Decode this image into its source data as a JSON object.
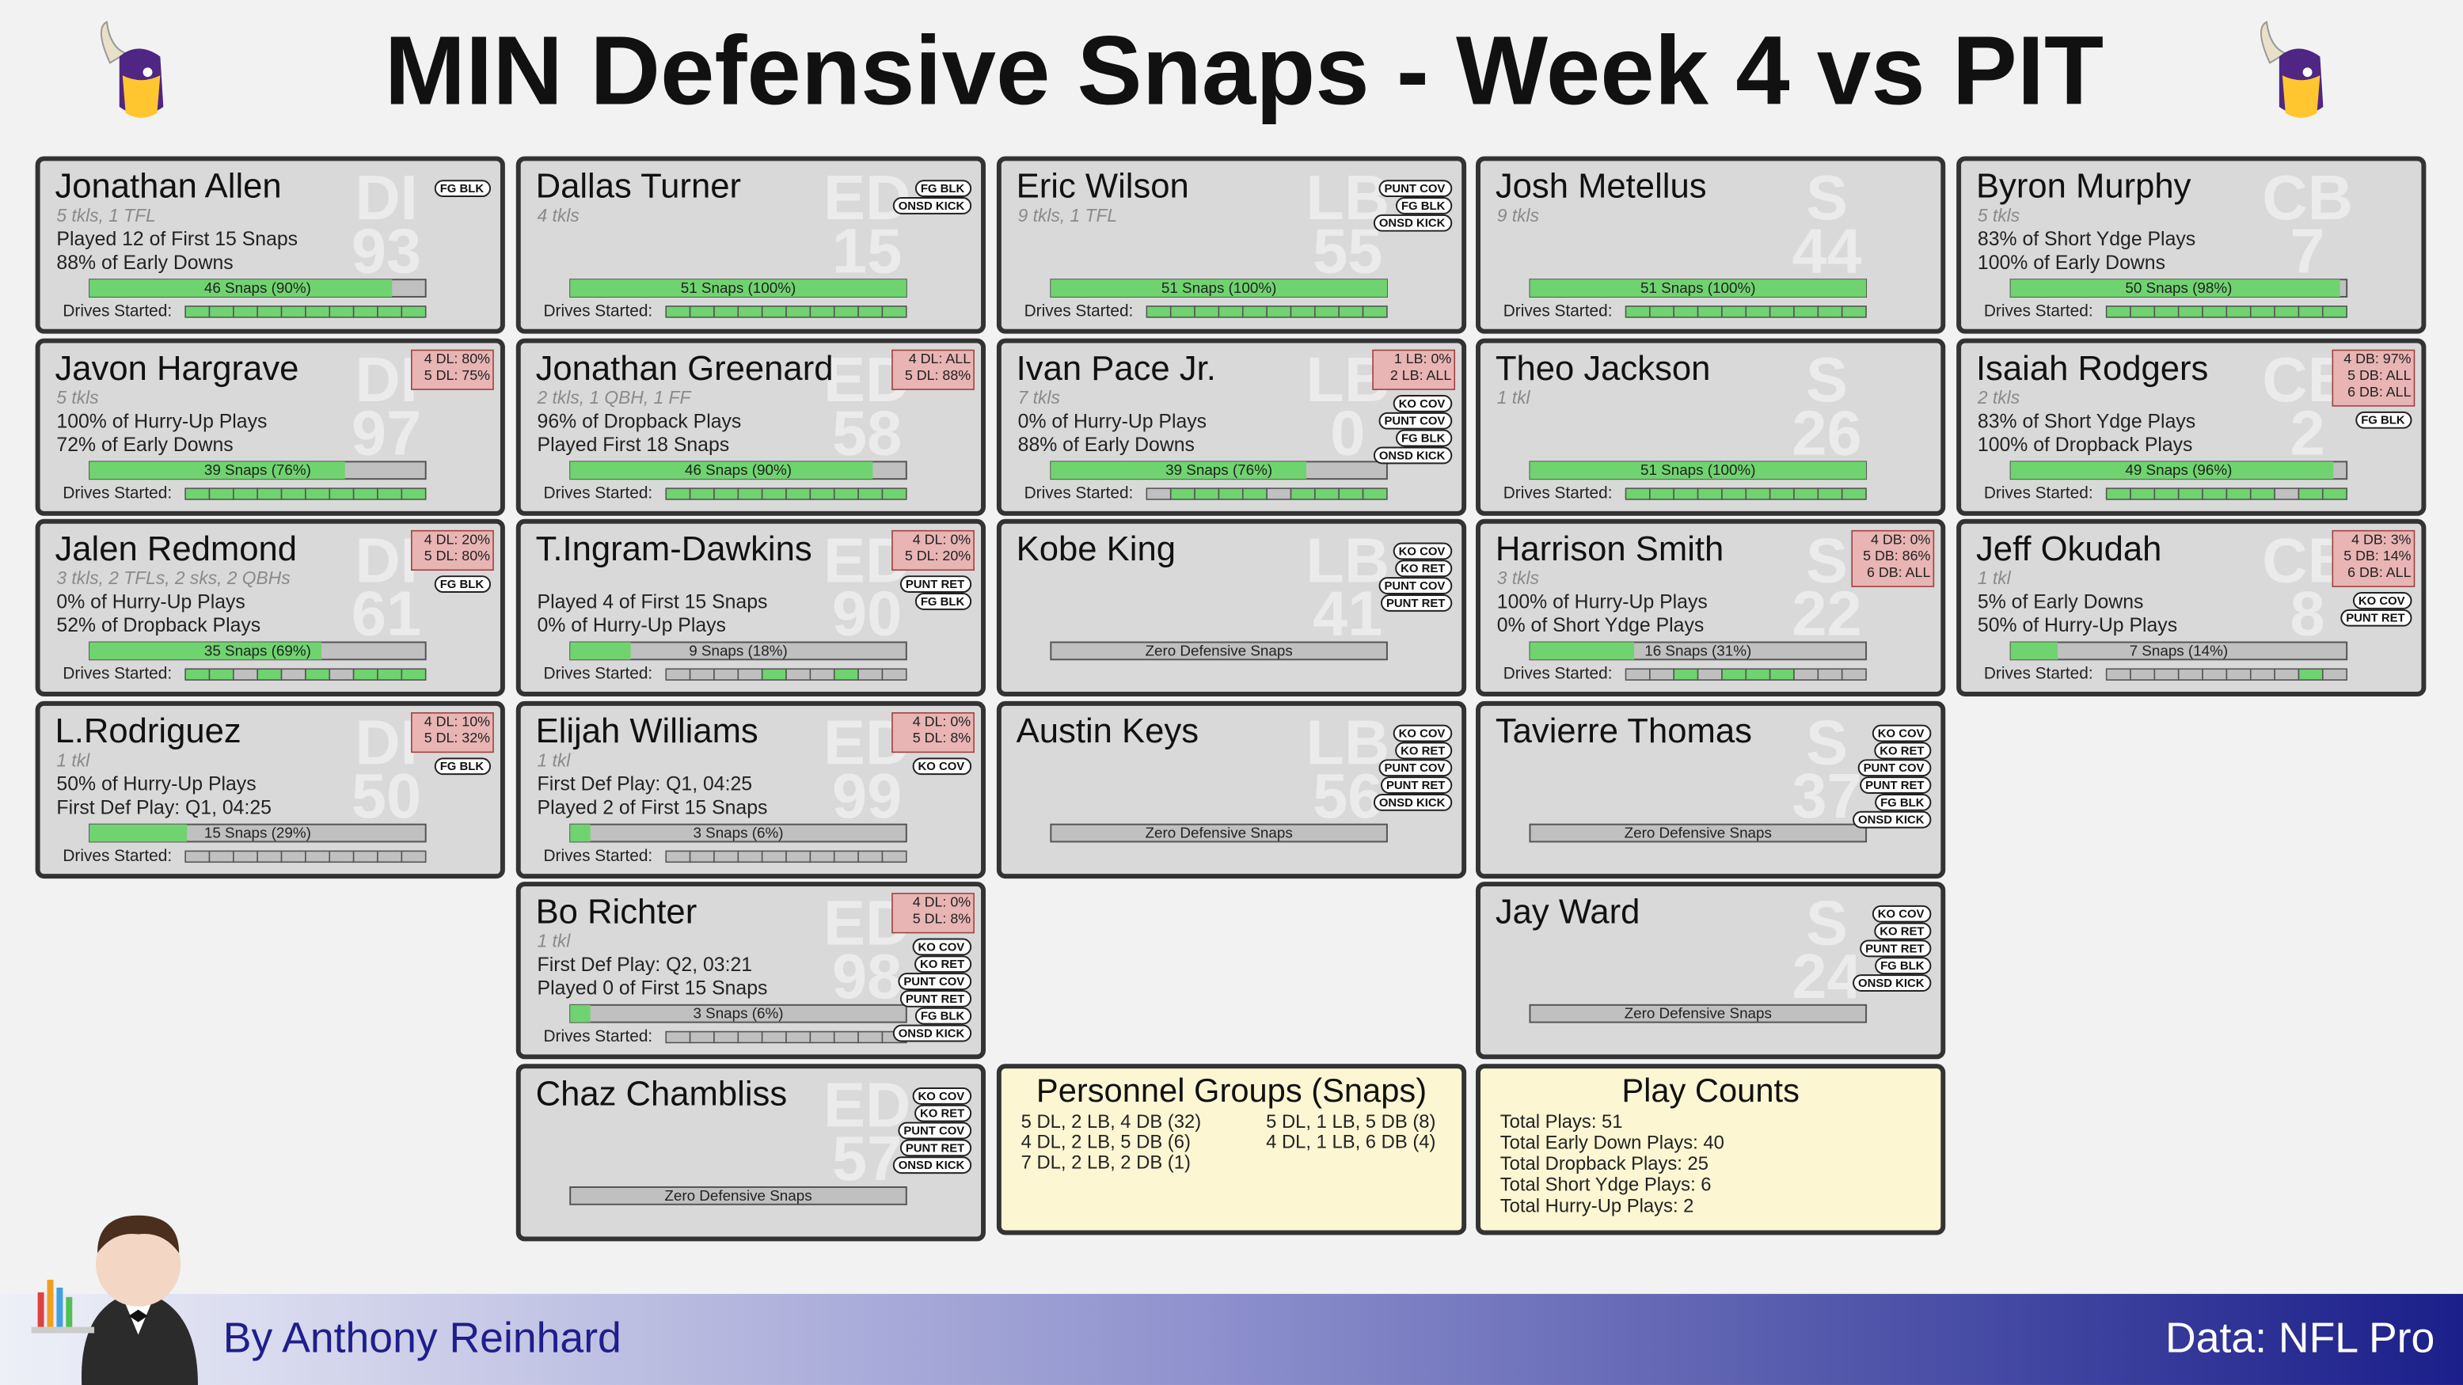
{
  "title": "MIN Defensive Snaps - Week 4 vs PIT",
  "drives_label": "Drives Started:",
  "columns": [
    {
      "cards": [
        {
          "name": "Jonathan Allen",
          "pos": "DI",
          "number": "93",
          "sub": "5 tkls, 1 TFL",
          "lines": [
            "Played 12 of First 15 Snaps",
            "88% of Early Downs"
          ],
          "snap_label": "46 Snaps (90%)",
          "snap_pct": 90,
          "tags": [
            "FG BLK"
          ],
          "drives": [
            1,
            1,
            1,
            1,
            1,
            1,
            1,
            1,
            1,
            1
          ]
        },
        {
          "name": "Javon Hargrave",
          "pos": "DI",
          "number": "97",
          "sub": "5 tkls",
          "lines": [
            "100% of Hurry-Up Plays",
            "72% of Early Downs"
          ],
          "snap_label": "39 Snaps (76%)",
          "snap_pct": 76,
          "split": [
            "4 DL: 80%",
            "5 DL: 75%"
          ],
          "drives": [
            1,
            1,
            1,
            1,
            1,
            1,
            1,
            1,
            1,
            1
          ]
        },
        {
          "name": "Jalen Redmond",
          "pos": "DI",
          "number": "61",
          "sub": "3 tkls, 2 TFLs, 2 sks, 2 QBHs",
          "lines": [
            "0% of Hurry-Up Plays",
            "52% of Dropback Plays"
          ],
          "snap_label": "35 Snaps (69%)",
          "snap_pct": 69,
          "split": [
            "4 DL: 20%",
            "5 DL: 80%"
          ],
          "tags": [
            "FG BLK"
          ],
          "drives": [
            1,
            1,
            0,
            1,
            0,
            1,
            0,
            1,
            1,
            1
          ]
        },
        {
          "name": "L.Rodriguez",
          "pos": "DI",
          "number": "50",
          "sub": "1 tkl",
          "lines": [
            "50% of Hurry-Up Plays",
            "First Def Play: Q1, 04:25"
          ],
          "snap_label": "15 Snaps (29%)",
          "snap_pct": 29,
          "split": [
            "4 DL: 10%",
            "5 DL: 32%"
          ],
          "tags": [
            "FG BLK"
          ],
          "drives": [
            0,
            0,
            0,
            0,
            0,
            0,
            0,
            0,
            0,
            0
          ]
        }
      ]
    },
    {
      "cards": [
        {
          "name": "Dallas Turner",
          "pos": "ED",
          "number": "15",
          "sub": "4 tkls",
          "snap_label": "51 Snaps (100%)",
          "snap_pct": 100,
          "tags": [
            "FG BLK",
            "ONSD KICK"
          ],
          "drives": [
            1,
            1,
            1,
            1,
            1,
            1,
            1,
            1,
            1,
            1
          ]
        },
        {
          "name": "Jonathan Greenard",
          "pos": "ED",
          "number": "58",
          "sub": "2 tkls, 1 QBH, 1 FF",
          "lines": [
            "96% of Dropback Plays",
            "Played First 18 Snaps"
          ],
          "snap_label": "46 Snaps (90%)",
          "snap_pct": 90,
          "split": [
            "4 DL: ALL",
            "5 DL: 88%"
          ],
          "drives": [
            1,
            1,
            1,
            1,
            1,
            1,
            1,
            1,
            1,
            1
          ]
        },
        {
          "name": "T.Ingram-Dawkins",
          "pos": "ED",
          "number": "90",
          "lines": [
            "Played 4 of First 15 Snaps",
            "0% of Hurry-Up Plays"
          ],
          "snap_label": "9 Snaps (18%)",
          "snap_pct": 18,
          "split": [
            "4 DL: 0%",
            "5 DL: 20%"
          ],
          "tags": [
            "PUNT RET",
            "FG BLK"
          ],
          "drives": [
            0,
            0,
            0,
            0,
            1,
            0,
            0,
            1,
            0,
            0
          ]
        },
        {
          "name": "Elijah Williams",
          "pos": "ED",
          "number": "99",
          "sub": "1 tkl",
          "lines": [
            "First Def Play: Q1, 04:25",
            "Played 2 of First 15 Snaps"
          ],
          "snap_label": "3 Snaps (6%)",
          "snap_pct": 6,
          "split": [
            "4 DL: 0%",
            "5 DL: 8%"
          ],
          "tags": [
            "KO COV"
          ],
          "drives": [
            0,
            0,
            0,
            0,
            0,
            0,
            0,
            0,
            0,
            0
          ]
        },
        {
          "name": "Bo Richter",
          "pos": "ED",
          "number": "98",
          "sub": "1 tkl",
          "lines": [
            "First Def Play: Q2, 03:21",
            "Played 0 of First 15 Snaps"
          ],
          "snap_label": "3 Snaps (6%)",
          "snap_pct": 6,
          "split": [
            "4 DL: 0%",
            "5 DL: 8%"
          ],
          "tags": [
            "KO COV",
            "KO RET",
            "PUNT COV",
            "PUNT RET",
            "FG BLK",
            "ONSD KICK"
          ],
          "drives": [
            0,
            0,
            0,
            0,
            0,
            0,
            0,
            0,
            0,
            0
          ]
        },
        {
          "name": "Chaz Chambliss",
          "pos": "ED",
          "number": "57",
          "snap_label": "Zero Defensive Snaps",
          "snap_pct": 0,
          "tags": [
            "KO COV",
            "KO RET",
            "PUNT COV",
            "PUNT RET",
            "ONSD KICK"
          ]
        }
      ]
    },
    {
      "cards": [
        {
          "name": "Eric Wilson",
          "pos": "LB",
          "number": "55",
          "sub": "9 tkls, 1 TFL",
          "snap_label": "51 Snaps (100%)",
          "snap_pct": 100,
          "tags": [
            "PUNT COV",
            "FG BLK",
            "ONSD KICK"
          ],
          "drives": [
            1,
            1,
            1,
            1,
            1,
            1,
            1,
            1,
            1,
            1
          ]
        },
        {
          "name": "Ivan Pace Jr.",
          "pos": "LB",
          "number": "0",
          "sub": "7 tkls",
          "lines": [
            "0% of Hurry-Up Plays",
            "88% of Early Downs"
          ],
          "snap_label": "39 Snaps (76%)",
          "snap_pct": 76,
          "split": [
            "1 LB: 0%",
            "2 LB: ALL"
          ],
          "tags": [
            "KO COV",
            "PUNT COV",
            "FG BLK",
            "ONSD KICK"
          ],
          "drives": [
            0,
            1,
            1,
            1,
            1,
            0,
            1,
            1,
            1,
            1
          ]
        },
        {
          "name": "Kobe King",
          "pos": "LB",
          "number": "41",
          "snap_label": "Zero Defensive Snaps",
          "snap_pct": 0,
          "tags": [
            "KO COV",
            "KO RET",
            "PUNT COV",
            "PUNT RET"
          ]
        },
        {
          "name": "Austin Keys",
          "pos": "LB",
          "number": "56",
          "snap_label": "Zero Defensive Snaps",
          "snap_pct": 0,
          "tags": [
            "KO COV",
            "KO RET",
            "PUNT COV",
            "PUNT RET",
            "ONSD KICK"
          ]
        }
      ]
    },
    {
      "cards": [
        {
          "name": "Josh Metellus",
          "pos": "S",
          "number": "44",
          "sub": "9 tkls",
          "snap_label": "51 Snaps (100%)",
          "snap_pct": 100,
          "drives": [
            1,
            1,
            1,
            1,
            1,
            1,
            1,
            1,
            1,
            1
          ]
        },
        {
          "name": "Theo Jackson",
          "pos": "S",
          "number": "26",
          "sub": "1 tkl",
          "snap_label": "51 Snaps (100%)",
          "snap_pct": 100,
          "drives": [
            1,
            1,
            1,
            1,
            1,
            1,
            1,
            1,
            1,
            1
          ]
        },
        {
          "name": "Harrison Smith",
          "pos": "S",
          "number": "22",
          "sub": "3 tkls",
          "lines": [
            "100% of Hurry-Up Plays",
            "0% of Short Ydge Plays"
          ],
          "snap_label": "16 Snaps (31%)",
          "snap_pct": 31,
          "split": [
            "4 DB: 0%",
            "5 DB: 86%",
            "6 DB: ALL"
          ],
          "drives": [
            0,
            0,
            1,
            0,
            1,
            1,
            1,
            0,
            0,
            0
          ]
        },
        {
          "name": "Tavierre Thomas",
          "pos": "S",
          "number": "37",
          "snap_label": "Zero Defensive Snaps",
          "snap_pct": 0,
          "tags": [
            "KO COV",
            "KO RET",
            "PUNT COV",
            "PUNT RET",
            "FG BLK",
            "ONSD KICK"
          ]
        },
        {
          "name": "Jay Ward",
          "pos": "S",
          "number": "24",
          "snap_label": "Zero Defensive Snaps",
          "snap_pct": 0,
          "tags": [
            "KO COV",
            "KO RET",
            "PUNT RET",
            "FG BLK",
            "ONSD KICK"
          ]
        }
      ]
    },
    {
      "cards": [
        {
          "name": "Byron Murphy",
          "pos": "CB",
          "number": "7",
          "sub": "5 tkls",
          "lines": [
            "83% of Short Ydge Plays",
            "100% of Early Downs"
          ],
          "snap_label": "50 Snaps (98%)",
          "snap_pct": 98,
          "drives": [
            1,
            1,
            1,
            1,
            1,
            1,
            1,
            1,
            1,
            1
          ]
        },
        {
          "name": "Isaiah Rodgers",
          "pos": "CB",
          "number": "2",
          "sub": "2 tkls",
          "lines": [
            "83% of Short Ydge Plays",
            "100% of Dropback Plays"
          ],
          "snap_label": "49 Snaps (96%)",
          "snap_pct": 96,
          "split": [
            "4 DB: 97%",
            "5 DB: ALL",
            "6 DB: ALL"
          ],
          "tags": [
            "FG BLK"
          ],
          "drives": [
            1,
            1,
            1,
            1,
            1,
            1,
            1,
            0,
            1,
            1
          ]
        },
        {
          "name": "Jeff Okudah",
          "pos": "CB",
          "number": "8",
          "sub": "1 tkl",
          "lines": [
            "5% of Early Downs",
            "50% of Hurry-Up Plays"
          ],
          "snap_label": "7 Snaps (14%)",
          "snap_pct": 14,
          "split": [
            "4 DB: 3%",
            "5 DB: 14%",
            "6 DB: ALL"
          ],
          "tags": [
            "KO COV",
            "PUNT RET"
          ],
          "drives": [
            0,
            0,
            0,
            0,
            0,
            0,
            0,
            0,
            1,
            0
          ]
        }
      ]
    }
  ],
  "personnel": {
    "title": "Personnel Groups (Snaps)",
    "groups": [
      "5 DL, 2 LB, 4 DB (32)",
      "5 DL, 1 LB, 5 DB (8)",
      "4 DL, 2 LB, 5 DB (6)",
      "4 DL, 1 LB, 6 DB (4)",
      "7 DL, 2 LB, 2 DB (1)"
    ]
  },
  "play_counts": {
    "title": "Play Counts",
    "lines": [
      "Total Plays: 51",
      "Total Early Down Plays: 40",
      "Total Dropback Plays: 25",
      "Total Short Ydge Plays: 6",
      "Total Hurry-Up Plays: 2"
    ]
  },
  "footer": {
    "author": "By Anthony Reinhard",
    "source": "Data: NFL Pro"
  }
}
